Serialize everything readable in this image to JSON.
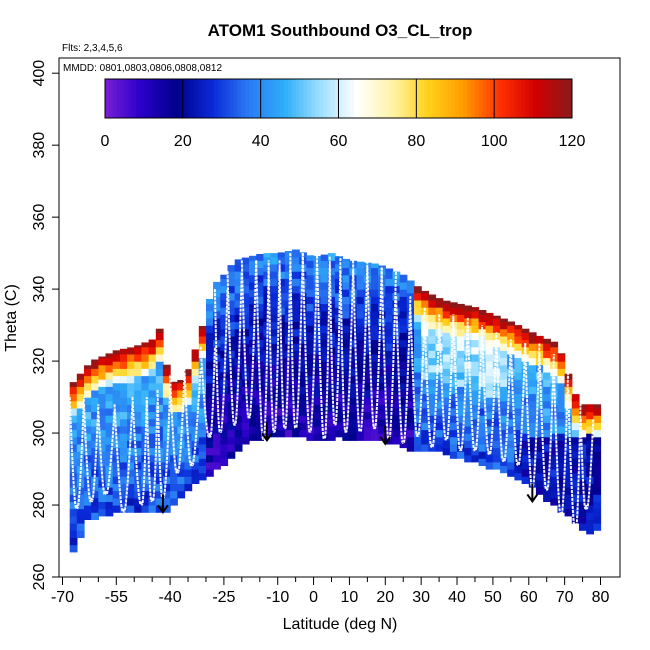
{
  "chart_data": {
    "type": "heatmap",
    "title": "ATOM1 Southbound O3_CL_trop",
    "flights_label": "Flts: 2,3,4,5,6",
    "dates_label": "MMDD: 0801,0803,0806,0808,0812",
    "xlabel": "Latitude (deg N)",
    "ylabel": "Theta (C)",
    "xlim": [
      -70,
      82
    ],
    "ylim": [
      260,
      402
    ],
    "x_ticks": [
      -70,
      -55,
      -40,
      -25,
      -10,
      0,
      10,
      20,
      30,
      40,
      50,
      60,
      70,
      80
    ],
    "x_tick_labels": [
      "-70",
      "-55",
      "-40",
      "-25",
      "-10",
      "0",
      "10",
      "20",
      "30",
      "40",
      "50",
      "60",
      "70",
      "80"
    ],
    "y_ticks": [
      260,
      280,
      300,
      320,
      340,
      360,
      380,
      400
    ],
    "y_tick_labels": [
      "260",
      "280",
      "300",
      "320",
      "340",
      "360",
      "380",
      "400"
    ],
    "colorbar": {
      "min": 0,
      "max": 120,
      "ticks": [
        0,
        20,
        40,
        60,
        80,
        100,
        120
      ],
      "tick_labels": [
        "0",
        "20",
        "40",
        "60",
        "80",
        "100",
        "120"
      ]
    },
    "colormap": [
      "#7a1fd6",
      "#2a00c8",
      "#00008c",
      "#0a2ad8",
      "#2b7bf3",
      "#2eaef8",
      "#9fe0ff",
      "#ffffff",
      "#fff3a8",
      "#ffd21a",
      "#ff9a00",
      "#ff3000",
      "#d00000",
      "#8a1a1a"
    ],
    "bottom_boundary_theta": {
      "lat": [
        -68,
        -63,
        -55,
        -45,
        -40,
        -36,
        -30,
        -24,
        -18,
        -13,
        -8,
        -3,
        2,
        7,
        12,
        20,
        28,
        35,
        45,
        52,
        61,
        70,
        76,
        78
      ],
      "theta": [
        265,
        276,
        278,
        278,
        279,
        284,
        288,
        292,
        298,
        299.5,
        300,
        299,
        298,
        299,
        298.5,
        298,
        295.5,
        295,
        292,
        290,
        285,
        278,
        272,
        273
      ]
    },
    "top_boundary_theta": {
      "lat": [
        -68,
        -62,
        -55,
        -50,
        -45,
        -43,
        -40,
        -36,
        -32,
        -28,
        -25,
        -22,
        -18,
        -14,
        -10,
        -5,
        0,
        5,
        10,
        18,
        25,
        30,
        36,
        45,
        55,
        63,
        68,
        74,
        78
      ],
      "theta": [
        313,
        320,
        323,
        324,
        326,
        329,
        314,
        315,
        326,
        341,
        344,
        348,
        349,
        350,
        350,
        351,
        349,
        350,
        348,
        347,
        344,
        340,
        337,
        335,
        331,
        327,
        325,
        308,
        308
      ]
    },
    "profile_bottoms": {
      "lat": [
        -66,
        -62,
        -58,
        -53,
        -48,
        -45,
        -42,
        -38,
        -34,
        -29,
        -26,
        -22,
        -18,
        -14,
        -11,
        -8,
        -5,
        -1,
        3,
        6,
        9,
        13,
        17,
        21,
        25,
        29,
        33,
        37,
        41,
        45,
        49,
        53,
        57,
        61,
        65,
        69,
        73,
        76
      ],
      "theta": [
        280,
        282,
        284,
        279,
        281,
        282,
        283,
        290,
        292,
        300,
        301,
        303,
        305,
        299,
        301,
        302,
        302,
        301,
        299,
        303,
        301,
        301,
        302,
        299,
        298,
        300,
        297,
        299,
        296,
        296,
        295,
        293,
        292,
        286,
        285,
        278,
        274,
        280
      ]
    },
    "profile_tops": {
      "lat": [
        -66,
        -62,
        -58,
        -53,
        -48,
        -45,
        -42,
        -38,
        -34,
        -29,
        -26,
        -22,
        -18,
        -14,
        -11,
        -8,
        -5,
        -1,
        3,
        6,
        9,
        13,
        17,
        21,
        25,
        29,
        33,
        37,
        41,
        45,
        49,
        53,
        57,
        61,
        65,
        69,
        73,
        76
      ],
      "theta": [
        310,
        308,
        306,
        308,
        310,
        309,
        312,
        316,
        318,
        324,
        340,
        345,
        348,
        348,
        346,
        348,
        350,
        350,
        347,
        349,
        345,
        348,
        346,
        346,
        338,
        335,
        330,
        333,
        332,
        330,
        328,
        326,
        325,
        325,
        322,
        318,
        312,
        304
      ]
    },
    "arrows_latitude": [
      -42,
      -13,
      20,
      61
    ],
    "arrows_theta": [
      281,
      301,
      300,
      284
    ]
  }
}
